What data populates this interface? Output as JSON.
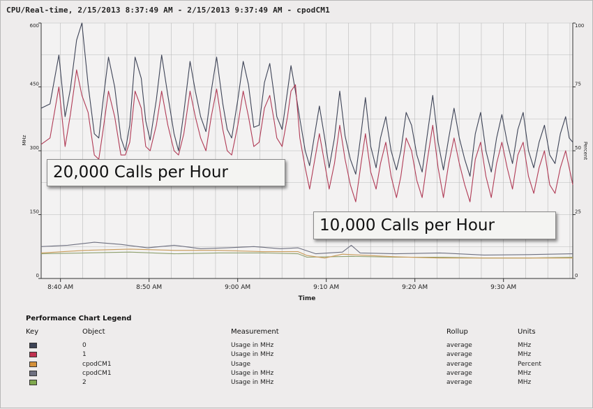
{
  "title": "CPU/Real-time, 2/15/2013 8:37:49 AM - 2/15/2013 9:37:49 AM - cpodCM1",
  "callouts": {
    "high": "20,000 Calls per Hour",
    "low": "10,000 Calls per Hour"
  },
  "colors": {
    "series0": "#3d4356",
    "series1": "#b03a55",
    "percent": "#c99a58",
    "cpodcm1_mhz": "#6e7080",
    "series2": "#8ea06e",
    "grid": "#b9b9b9",
    "background": "#eeecec"
  },
  "chart_data": {
    "type": "line",
    "xlabel": "Time",
    "ylabel": "MHz",
    "y2label": "Percent",
    "ylim": [
      0,
      600
    ],
    "y2lim": [
      0,
      100
    ],
    "yticks": [
      "0",
      "150",
      "300",
      "450",
      "600"
    ],
    "y2ticks": [
      "0",
      "25",
      "50",
      "75",
      "100"
    ],
    "xlim": [
      "8:37:49",
      "9:37:49"
    ],
    "xticks": [
      "8:40 AM",
      "8:50 AM",
      "9:00 AM",
      "9:10 AM",
      "9:20 AM",
      "9:30 AM"
    ],
    "grid": true,
    "note": "x values are minutes after 8:37:49 AM",
    "series": [
      {
        "name": "0",
        "axis": "left",
        "points": [
          [
            0,
            400
          ],
          [
            1,
            410
          ],
          [
            2,
            525
          ],
          [
            2.7,
            380
          ],
          [
            3.3,
            445
          ],
          [
            4,
            560
          ],
          [
            4.6,
            600
          ],
          [
            5.3,
            455
          ],
          [
            6,
            340
          ],
          [
            6.5,
            330
          ],
          [
            7,
            420
          ],
          [
            7.6,
            520
          ],
          [
            8.3,
            450
          ],
          [
            9,
            330
          ],
          [
            9.5,
            300
          ],
          [
            10,
            360
          ],
          [
            10.6,
            520
          ],
          [
            11.3,
            470
          ],
          [
            11.8,
            370
          ],
          [
            12.3,
            325
          ],
          [
            13,
            420
          ],
          [
            13.6,
            525
          ],
          [
            14.3,
            430
          ],
          [
            15,
            340
          ],
          [
            15.5,
            300
          ],
          [
            16.1,
            390
          ],
          [
            16.8,
            510
          ],
          [
            17.4,
            440
          ],
          [
            18,
            380
          ],
          [
            18.6,
            345
          ],
          [
            19.2,
            440
          ],
          [
            19.8,
            520
          ],
          [
            20.5,
            410
          ],
          [
            21,
            350
          ],
          [
            21.5,
            330
          ],
          [
            22.2,
            420
          ],
          [
            22.8,
            510
          ],
          [
            23.4,
            455
          ],
          [
            24,
            355
          ],
          [
            24.6,
            360
          ],
          [
            25.2,
            460
          ],
          [
            25.8,
            505
          ],
          [
            26.3,
            430
          ],
          [
            26.6,
            380
          ],
          [
            27.2,
            350
          ],
          [
            27.8,
            440
          ],
          [
            28.2,
            500
          ],
          [
            28.7,
            440
          ],
          [
            29.2,
            375
          ],
          [
            29.8,
            300
          ],
          [
            30.3,
            265
          ],
          [
            30.8,
            330
          ],
          [
            31.4,
            405
          ],
          [
            32,
            330
          ],
          [
            32.5,
            260
          ],
          [
            33.1,
            330
          ],
          [
            33.7,
            440
          ],
          [
            34.3,
            335
          ],
          [
            34.9,
            280
          ],
          [
            35.5,
            245
          ],
          [
            36.1,
            340
          ],
          [
            36.6,
            425
          ],
          [
            37.2,
            310
          ],
          [
            37.8,
            260
          ],
          [
            38.3,
            330
          ],
          [
            38.9,
            380
          ],
          [
            39.5,
            300
          ],
          [
            40.1,
            255
          ],
          [
            40.6,
            300
          ],
          [
            41.2,
            390
          ],
          [
            41.8,
            360
          ],
          [
            42.4,
            290
          ],
          [
            43,
            250
          ],
          [
            43.6,
            340
          ],
          [
            44.2,
            430
          ],
          [
            44.8,
            320
          ],
          [
            45.4,
            255
          ],
          [
            46,
            330
          ],
          [
            46.6,
            400
          ],
          [
            47.2,
            330
          ],
          [
            47.8,
            280
          ],
          [
            48.4,
            240
          ],
          [
            49,
            340
          ],
          [
            49.6,
            390
          ],
          [
            50.2,
            300
          ],
          [
            50.8,
            250
          ],
          [
            51.4,
            330
          ],
          [
            52,
            385
          ],
          [
            52.6,
            320
          ],
          [
            53.2,
            270
          ],
          [
            53.8,
            350
          ],
          [
            54.4,
            390
          ],
          [
            55,
            300
          ],
          [
            55.6,
            260
          ],
          [
            56.2,
            320
          ],
          [
            56.8,
            360
          ],
          [
            57.4,
            290
          ],
          [
            58,
            270
          ],
          [
            58.6,
            340
          ],
          [
            59.2,
            380
          ],
          [
            59.6,
            330
          ],
          [
            60,
            320
          ]
        ]
      },
      {
        "name": "1",
        "axis": "left",
        "points": [
          [
            0,
            315
          ],
          [
            1,
            330
          ],
          [
            2,
            450
          ],
          [
            2.7,
            310
          ],
          [
            3.3,
            385
          ],
          [
            4,
            490
          ],
          [
            4.6,
            430
          ],
          [
            5.3,
            390
          ],
          [
            6,
            290
          ],
          [
            6.5,
            280
          ],
          [
            7,
            350
          ],
          [
            7.6,
            440
          ],
          [
            8.3,
            380
          ],
          [
            9,
            290
          ],
          [
            9.5,
            290
          ],
          [
            10,
            320
          ],
          [
            10.6,
            440
          ],
          [
            11.3,
            400
          ],
          [
            11.8,
            310
          ],
          [
            12.3,
            300
          ],
          [
            13,
            360
          ],
          [
            13.6,
            440
          ],
          [
            14.3,
            360
          ],
          [
            15,
            300
          ],
          [
            15.5,
            290
          ],
          [
            16.1,
            340
          ],
          [
            16.8,
            440
          ],
          [
            17.4,
            380
          ],
          [
            18,
            330
          ],
          [
            18.6,
            300
          ],
          [
            19.2,
            380
          ],
          [
            19.8,
            445
          ],
          [
            20.5,
            350
          ],
          [
            21,
            300
          ],
          [
            21.5,
            290
          ],
          [
            22.2,
            360
          ],
          [
            22.8,
            440
          ],
          [
            23.4,
            380
          ],
          [
            24,
            310
          ],
          [
            24.6,
            320
          ],
          [
            25.2,
            400
          ],
          [
            25.8,
            430
          ],
          [
            26.3,
            370
          ],
          [
            26.6,
            330
          ],
          [
            27.2,
            310
          ],
          [
            27.8,
            380
          ],
          [
            28.2,
            440
          ],
          [
            28.7,
            455
          ],
          [
            29.2,
            330
          ],
          [
            29.8,
            260
          ],
          [
            30.3,
            210
          ],
          [
            30.8,
            270
          ],
          [
            31.4,
            340
          ],
          [
            32,
            270
          ],
          [
            32.5,
            210
          ],
          [
            33.1,
            270
          ],
          [
            33.7,
            360
          ],
          [
            34.3,
            280
          ],
          [
            34.9,
            220
          ],
          [
            35.5,
            180
          ],
          [
            36.1,
            270
          ],
          [
            36.6,
            340
          ],
          [
            37.2,
            250
          ],
          [
            37.8,
            210
          ],
          [
            38.3,
            270
          ],
          [
            38.9,
            320
          ],
          [
            39.5,
            240
          ],
          [
            40.1,
            190
          ],
          [
            40.6,
            240
          ],
          [
            41.2,
            330
          ],
          [
            41.8,
            300
          ],
          [
            42.4,
            230
          ],
          [
            43,
            190
          ],
          [
            43.6,
            280
          ],
          [
            44.2,
            360
          ],
          [
            44.8,
            260
          ],
          [
            45.4,
            190
          ],
          [
            46,
            270
          ],
          [
            46.6,
            330
          ],
          [
            47.2,
            270
          ],
          [
            47.8,
            220
          ],
          [
            48.4,
            180
          ],
          [
            49,
            280
          ],
          [
            49.6,
            320
          ],
          [
            50.2,
            240
          ],
          [
            50.8,
            190
          ],
          [
            51.4,
            270
          ],
          [
            52,
            320
          ],
          [
            52.6,
            260
          ],
          [
            53.2,
            210
          ],
          [
            53.8,
            290
          ],
          [
            54.4,
            320
          ],
          [
            55,
            240
          ],
          [
            55.6,
            200
          ],
          [
            56.2,
            260
          ],
          [
            56.8,
            300
          ],
          [
            57.4,
            220
          ],
          [
            58,
            200
          ],
          [
            58.6,
            260
          ],
          [
            59.2,
            300
          ],
          [
            59.6,
            260
          ],
          [
            60,
            220
          ]
        ]
      },
      {
        "name": "cpodCM1 (Usage, Percent)",
        "axis": "right",
        "points": [
          [
            0,
            10
          ],
          [
            5,
            11
          ],
          [
            10,
            11.5
          ],
          [
            15,
            11
          ],
          [
            20,
            11
          ],
          [
            25,
            10.5
          ],
          [
            29,
            10.5
          ],
          [
            30,
            9
          ],
          [
            32,
            8
          ],
          [
            34,
            9.5
          ],
          [
            40,
            8.5
          ],
          [
            45,
            8
          ],
          [
            50,
            8
          ],
          [
            55,
            8
          ],
          [
            60,
            8
          ]
        ]
      },
      {
        "name": "cpodCM1 (Usage in MHz)",
        "axis": "left",
        "points": [
          [
            0,
            75
          ],
          [
            3,
            78
          ],
          [
            6,
            85
          ],
          [
            9,
            80
          ],
          [
            12,
            72
          ],
          [
            15,
            78
          ],
          [
            18,
            70
          ],
          [
            21,
            72
          ],
          [
            24,
            75
          ],
          [
            27,
            70
          ],
          [
            29,
            72
          ],
          [
            31,
            58
          ],
          [
            34,
            62
          ],
          [
            35,
            78
          ],
          [
            36,
            60
          ],
          [
            40,
            58
          ],
          [
            45,
            60
          ],
          [
            50,
            55
          ],
          [
            55,
            56
          ],
          [
            60,
            58
          ]
        ]
      },
      {
        "name": "2",
        "axis": "left",
        "points": [
          [
            0,
            58
          ],
          [
            5,
            60
          ],
          [
            10,
            62
          ],
          [
            15,
            58
          ],
          [
            20,
            60
          ],
          [
            25,
            60
          ],
          [
            29,
            58
          ],
          [
            30,
            50
          ],
          [
            35,
            52
          ],
          [
            40,
            50
          ],
          [
            45,
            50
          ],
          [
            50,
            48
          ],
          [
            55,
            48
          ],
          [
            60,
            50
          ]
        ]
      }
    ]
  },
  "legend": {
    "title": "Performance Chart Legend",
    "headers": [
      "Key",
      "Object",
      "Measurement",
      "Rollup",
      "Units"
    ],
    "rows": [
      {
        "object": "0",
        "measurement": "Usage in MHz",
        "rollup": "average",
        "units": "MHz"
      },
      {
        "object": "1",
        "measurement": "Usage in MHz",
        "rollup": "average",
        "units": "MHz"
      },
      {
        "object": "cpodCM1",
        "measurement": "Usage",
        "rollup": "average",
        "units": "Percent"
      },
      {
        "object": "cpodCM1",
        "measurement": "Usage in MHz",
        "rollup": "average",
        "units": "MHz"
      },
      {
        "object": "2",
        "measurement": "Usage in MHz",
        "rollup": "average",
        "units": "MHz"
      }
    ],
    "swatch_colors": [
      "#3d4356",
      "#c0314f",
      "#d4903a",
      "#6e7080",
      "#7fa84e"
    ]
  }
}
